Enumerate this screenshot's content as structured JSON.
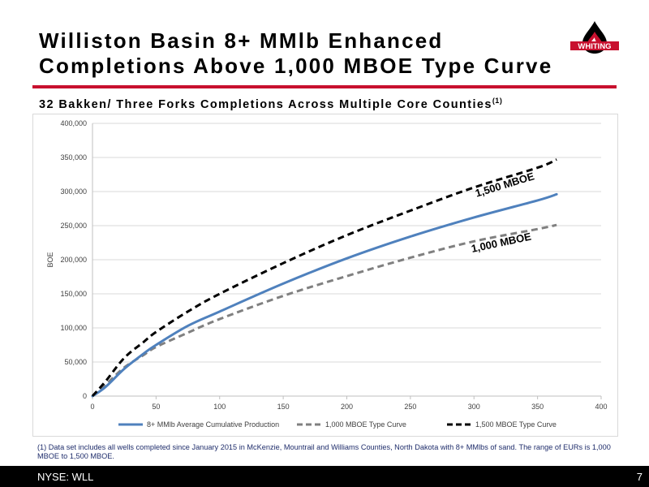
{
  "slide": {
    "title_line1": "Williston Basin 8+ MMlb Enhanced",
    "title_line2": "Completions Above 1,000 MBOE Type Curve",
    "subtitle": "32 Bakken/ Three Forks Completions Across Multiple Core Counties",
    "subtitle_sup": "(1)",
    "logo_text": "WHITING",
    "footnote": "(1) Data set includes all wells completed since January 2015 in McKenzie, Mountrail and Williams Counties, North Dakota with 8+ MMlbs of sand.  The range of EURs is 1,000 MBOE to 1,500 MBOE.",
    "footer_ticker": "NYSE: WLL",
    "page_number": "7"
  },
  "colors": {
    "brand_red": "#c8102e",
    "blue_series": "#4f81bd",
    "gray_series": "#808080",
    "black_series": "#000000"
  },
  "chart_data": {
    "type": "line",
    "title": "",
    "xlabel": "",
    "ylabel": "BOE",
    "xlim": [
      0,
      400
    ],
    "ylim": [
      0,
      400000
    ],
    "x_ticks": [
      "0",
      "50",
      "100",
      "150",
      "200",
      "250",
      "300",
      "350",
      "400"
    ],
    "y_ticks": [
      "0",
      "50,000",
      "100,000",
      "150,000",
      "200,000",
      "250,000",
      "300,000",
      "350,000",
      "400,000"
    ],
    "grid": "horizontal",
    "legend_position": "bottom",
    "series": [
      {
        "name": "8+ MMlb Average Cumulative Production",
        "style": "solid",
        "color": "#4f81bd",
        "x": [
          0,
          10,
          25,
          40,
          50,
          75,
          100,
          150,
          200,
          250,
          300,
          350,
          365
        ],
        "y": [
          0,
          13000,
          40000,
          62000,
          75000,
          103000,
          124000,
          165000,
          202000,
          234000,
          262000,
          287000,
          296000
        ]
      },
      {
        "name": "1,000 MBOE Type Curve",
        "style": "dashed",
        "color": "#808080",
        "x": [
          0,
          10,
          25,
          40,
          50,
          75,
          100,
          150,
          200,
          250,
          300,
          350,
          365
        ],
        "y": [
          0,
          16000,
          42000,
          60000,
          72000,
          93000,
          113000,
          147000,
          176000,
          203000,
          227000,
          245000,
          251000
        ]
      },
      {
        "name": "1,500 MBOE Type Curve",
        "style": "dashed",
        "color": "#000000",
        "x": [
          0,
          10,
          25,
          40,
          50,
          75,
          100,
          150,
          200,
          250,
          300,
          350,
          365
        ],
        "y": [
          0,
          21000,
          56000,
          79000,
          94000,
          124000,
          150000,
          195000,
          236000,
          272000,
          306000,
          335000,
          347000
        ]
      }
    ],
    "annotations": [
      {
        "text": "1,500 MBOE",
        "x": 325,
        "y": 305000,
        "angle": -17
      },
      {
        "text": "1,000 MBOE",
        "x": 322,
        "y": 220000,
        "angle": -12
      }
    ]
  }
}
